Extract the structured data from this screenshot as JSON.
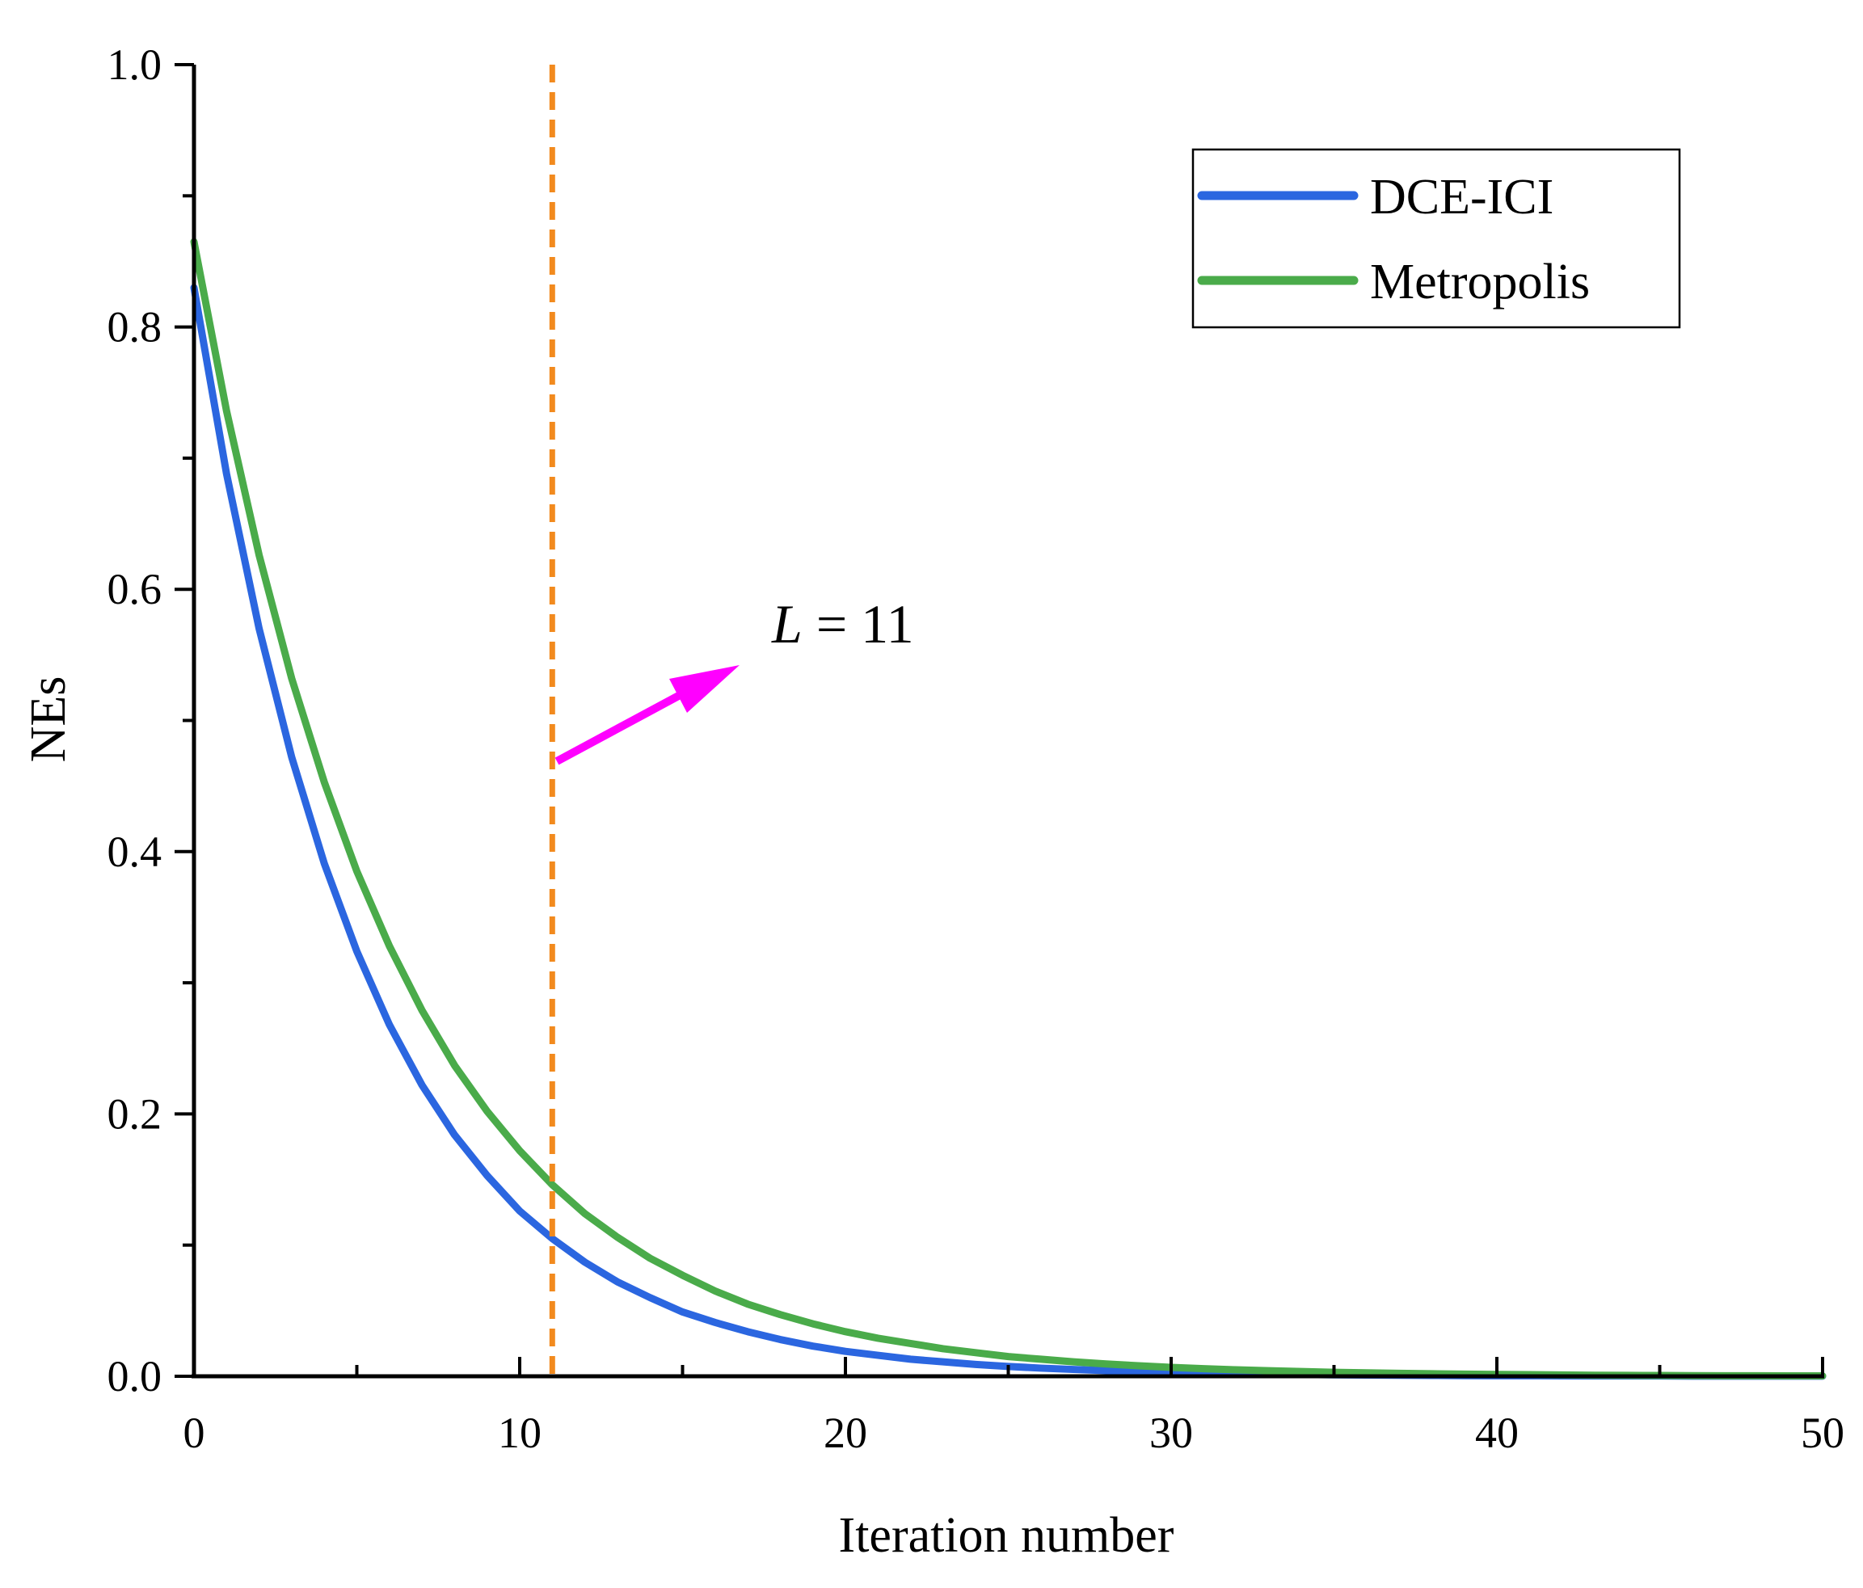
{
  "chart_data": {
    "type": "line",
    "title": "",
    "xlabel": "Iteration number",
    "ylabel": "NEs",
    "xlim": [
      0,
      50
    ],
    "ylim": [
      0,
      1.0
    ],
    "xticks": [
      0,
      10,
      20,
      30,
      40,
      50
    ],
    "xtick_labels": [
      "0",
      "10",
      "20",
      "30",
      "40",
      "50"
    ],
    "yticks": [
      0,
      0.2,
      0.4,
      0.6,
      0.8,
      1.0
    ],
    "ytick_labels": [
      "0.0",
      "0.2",
      "0.4",
      "0.6",
      "0.8",
      "1.0"
    ],
    "grid": false,
    "legend_position": "top-right",
    "x": [
      0,
      1,
      2,
      3,
      4,
      5,
      6,
      7,
      8,
      9,
      10,
      11,
      12,
      13,
      14,
      15,
      16,
      17,
      18,
      19,
      20,
      21,
      22,
      23,
      24,
      25,
      26,
      27,
      28,
      29,
      30,
      31,
      32,
      33,
      34,
      35,
      36,
      37,
      38,
      39,
      40,
      41,
      42,
      43,
      44,
      45,
      46,
      47,
      48,
      49,
      50
    ],
    "series": [
      {
        "name": "DCE-ICI",
        "color": "#2b66e0",
        "values": [
          0.83,
          0.688,
          0.57,
          0.472,
          0.391,
          0.324,
          0.268,
          0.222,
          0.184,
          0.153,
          0.126,
          0.105,
          0.087,
          0.072,
          0.06,
          0.049,
          0.041,
          0.034,
          0.028,
          0.023,
          0.019,
          0.016,
          0.013,
          0.011,
          0.009,
          0.0075,
          0.0062,
          0.0052,
          0.0043,
          0.0035,
          0.0029,
          0.0024,
          0.002,
          0.0017,
          0.0014,
          0.0011,
          0.0009,
          0.0008,
          0.0006,
          0.0005,
          0.0004,
          0.0004,
          0.0003,
          0.0002,
          0.0002,
          0.0002,
          0.0001,
          0.0001,
          0.0001,
          0.0001,
          0.0001
        ]
      },
      {
        "name": "Metropolis",
        "color": "#4aab4a",
        "values": [
          0.865,
          0.736,
          0.626,
          0.532,
          0.453,
          0.385,
          0.328,
          0.279,
          0.237,
          0.202,
          0.172,
          0.146,
          0.124,
          0.106,
          0.09,
          0.077,
          0.065,
          0.055,
          0.047,
          0.04,
          0.034,
          0.029,
          0.025,
          0.021,
          0.018,
          0.015,
          0.013,
          0.011,
          0.0094,
          0.008,
          0.0068,
          0.0058,
          0.0049,
          0.0042,
          0.0036,
          0.003,
          0.0026,
          0.0022,
          0.0019,
          0.0016,
          0.0014,
          0.0012,
          0.001,
          0.0008,
          0.0007,
          0.0006,
          0.0005,
          0.0004,
          0.0004,
          0.0003,
          0.0003
        ]
      }
    ],
    "annotations": [
      {
        "type": "vline",
        "x": 11,
        "color": "#f28a1e",
        "style": "dashed"
      },
      {
        "type": "arrow",
        "label_prefix": "L",
        "label_suffix": " = 11",
        "color": "#ff00ff"
      }
    ]
  }
}
